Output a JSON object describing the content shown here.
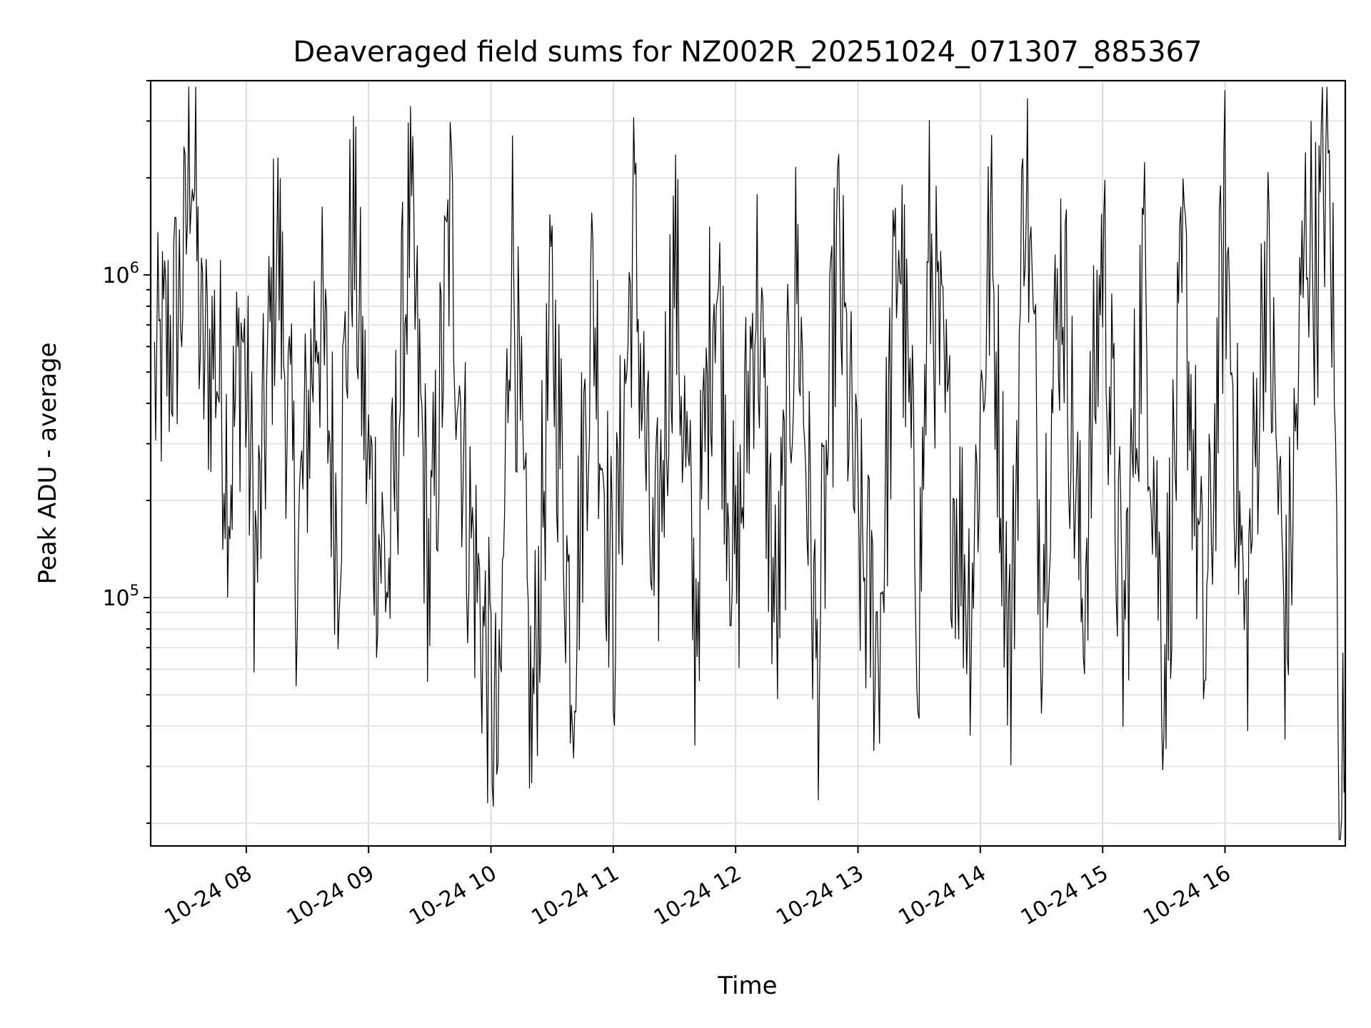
{
  "chart_data": {
    "type": "line",
    "title": "Deaveraged field sums for NZ002R_20251024_071307_885367",
    "xlabel": "Time",
    "ylabel": "Peak ADU - average",
    "y_scale": "log",
    "grid": true,
    "x_range": [
      "2025-10-24 07:13:07",
      "2025-10-24 16:59:00"
    ],
    "ylim": [
      17000,
      4000000
    ],
    "x_tick_labels": [
      "10-24 08",
      "10-24 09",
      "10-24 10",
      "10-24 11",
      "10-24 12",
      "10-24 13",
      "10-24 14",
      "10-24 15",
      "10-24 16"
    ],
    "y_tick_labels": [
      {
        "base": "10",
        "exp": "5",
        "value": 100000
      },
      {
        "base": "10",
        "exp": "6",
        "value": 1000000
      }
    ],
    "series": [
      {
        "color": "#000000",
        "x": [
          "2025-10-24 07:15",
          "2025-10-24 07:25",
          "2025-10-24 07:30",
          "2025-10-24 07:33",
          "2025-10-24 07:38",
          "2025-10-24 07:45",
          "2025-10-24 07:52",
          "2025-10-24 07:58",
          "2025-10-24 08:05",
          "2025-10-24 08:15",
          "2025-10-24 08:25",
          "2025-10-24 08:35",
          "2025-10-24 08:45",
          "2025-10-24 08:52",
          "2025-10-24 09:00",
          "2025-10-24 09:10",
          "2025-10-24 09:20",
          "2025-10-24 09:30",
          "2025-10-24 09:40",
          "2025-10-24 09:48",
          "2025-10-24 09:55",
          "2025-10-24 10:04",
          "2025-10-24 10:10",
          "2025-10-24 10:20",
          "2025-10-24 10:30",
          "2025-10-24 10:40",
          "2025-10-24 10:50",
          "2025-10-24 11:00",
          "2025-10-24 11:10",
          "2025-10-24 11:20",
          "2025-10-24 11:30",
          "2025-10-24 11:40",
          "2025-10-24 11:50",
          "2025-10-24 12:00",
          "2025-10-24 12:10",
          "2025-10-24 12:20",
          "2025-10-24 12:30",
          "2025-10-24 12:40",
          "2025-10-24 12:50",
          "2025-10-24 13:00",
          "2025-10-24 13:10",
          "2025-10-24 13:20",
          "2025-10-24 13:30",
          "2025-10-24 13:35",
          "2025-10-24 13:45",
          "2025-10-24 13:55",
          "2025-10-24 14:05",
          "2025-10-24 14:15",
          "2025-10-24 14:22",
          "2025-10-24 14:30",
          "2025-10-24 14:40",
          "2025-10-24 14:50",
          "2025-10-24 15:00",
          "2025-10-24 15:10",
          "2025-10-24 15:20",
          "2025-10-24 15:30",
          "2025-10-24 15:40",
          "2025-10-24 15:50",
          "2025-10-24 16:00",
          "2025-10-24 16:10",
          "2025-10-24 16:20",
          "2025-10-24 16:30",
          "2025-10-24 16:40",
          "2025-10-24 16:45",
          "2025-10-24 16:50",
          "2025-10-24 16:53",
          "2025-10-24 16:56",
          "2025-10-24 16:59"
        ],
        "y": [
          450000,
          700000,
          1100000,
          3300000,
          520000,
          600000,
          240000,
          700000,
          120000,
          1400000,
          130000,
          900000,
          160000,
          1600000,
          230000,
          110000,
          1500000,
          110000,
          1500000,
          200000,
          90000,
          30000,
          1600000,
          36000,
          800000,
          64000,
          930000,
          85000,
          1400000,
          90000,
          1200000,
          80000,
          1200000,
          100000,
          1000000,
          75000,
          1100000,
          55000,
          1200000,
          150000,
          70000,
          1500000,
          90000,
          1200000,
          250000,
          100000,
          1300000,
          60000,
          2700000,
          120000,
          1200000,
          90000,
          1300000,
          70000,
          1100000,
          60000,
          1000000,
          60000,
          1500000,
          70000,
          1200000,
          75000,
          1600000,
          1000000,
          2500000,
          800000,
          40000,
          30000
        ]
      }
    ]
  }
}
